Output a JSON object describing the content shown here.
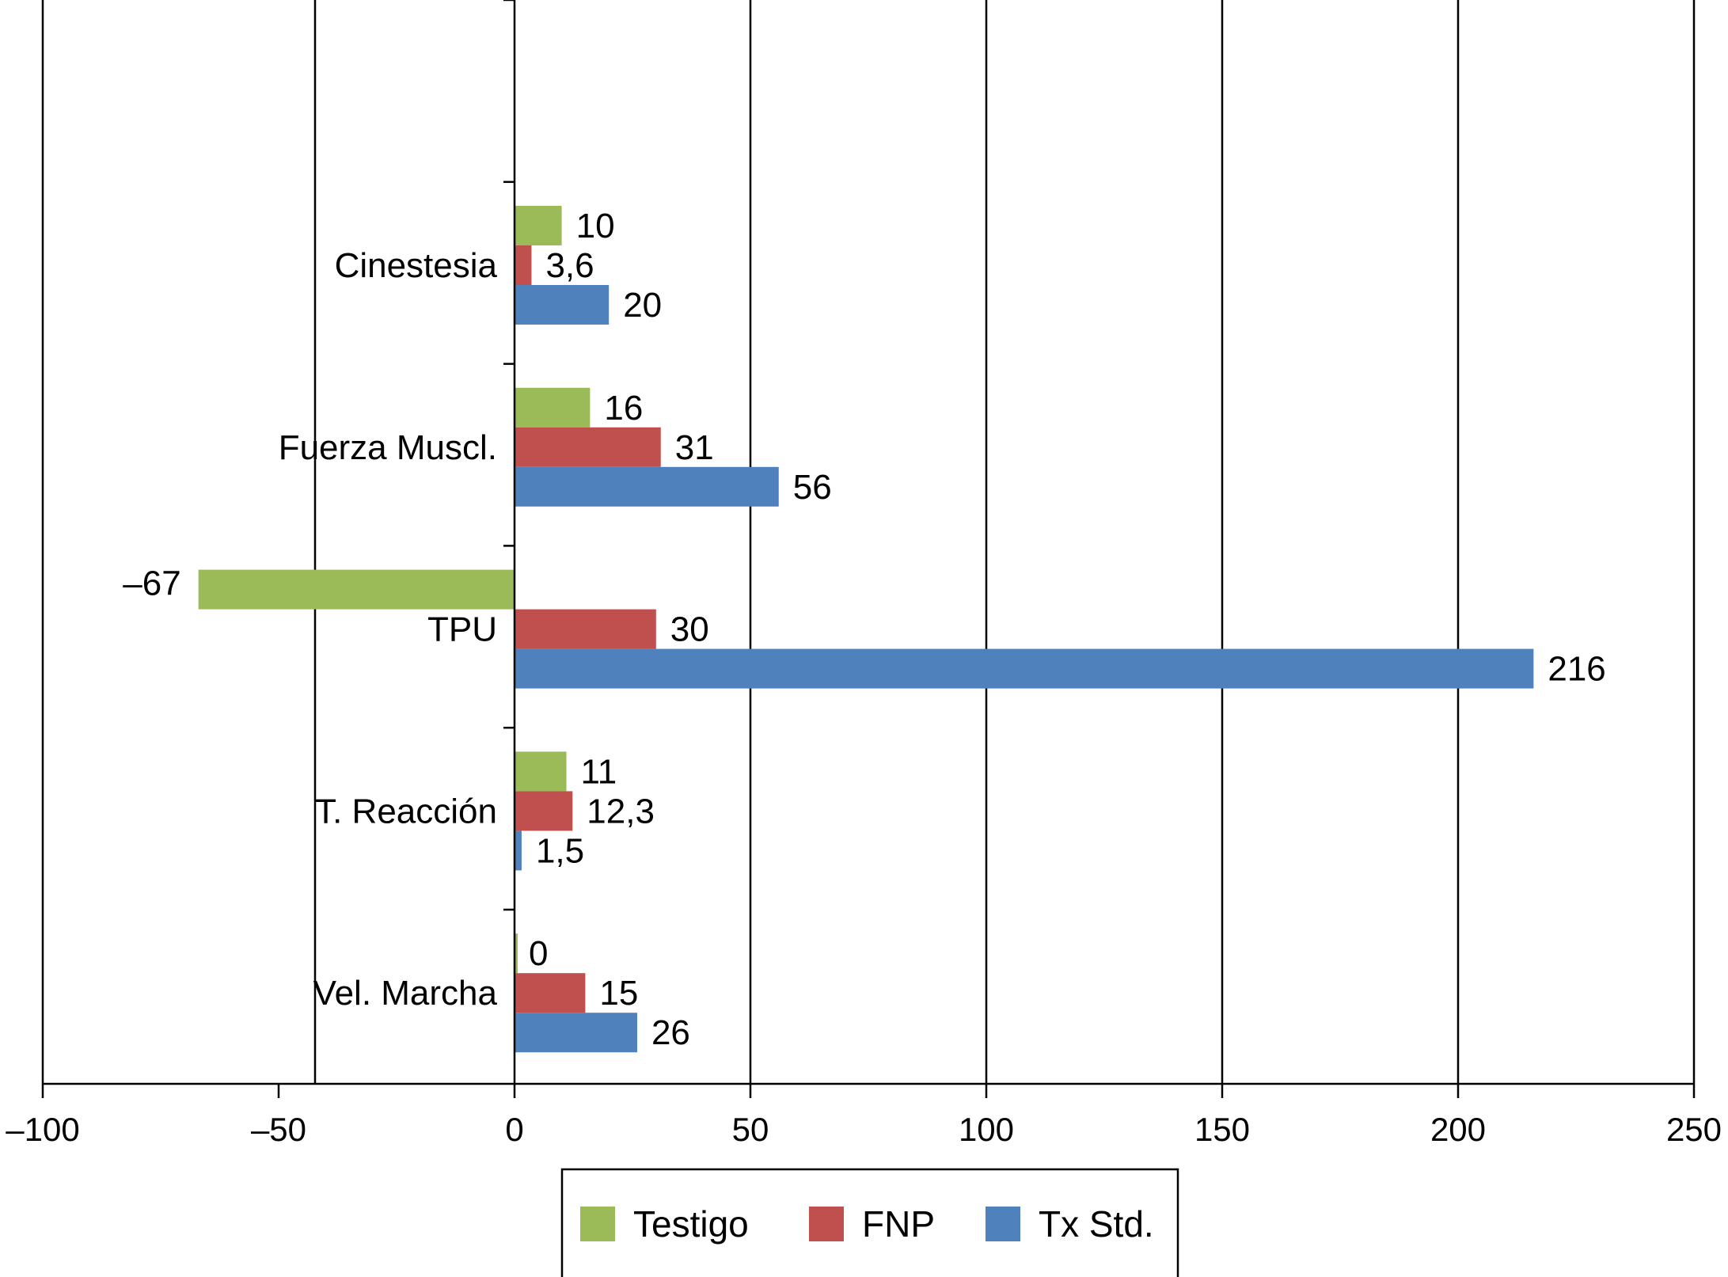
{
  "chart_data": {
    "type": "bar",
    "orientation": "horizontal",
    "categories": [
      "Cinestesia",
      "Fuerza Muscl.",
      "TPU",
      "T. Reacción",
      "Vel. Marcha"
    ],
    "series": [
      {
        "name": "Testigo",
        "color": "#9bbb59",
        "values": [
          10,
          16,
          -67,
          11,
          0
        ],
        "labels": [
          "10",
          "16",
          "–67",
          "11",
          "0"
        ]
      },
      {
        "name": "FNP",
        "color": "#c0504d",
        "values": [
          3.6,
          31,
          30,
          12.3,
          15
        ],
        "labels": [
          "3,6",
          "31",
          "30",
          "12,3",
          "15"
        ]
      },
      {
        "name": "Tx Std.",
        "color": "#4f81bd",
        "values": [
          20,
          56,
          216,
          1.5,
          26
        ],
        "labels": [
          "20",
          "56",
          "216",
          "1,5",
          "26"
        ]
      }
    ],
    "xlim": [
      -100,
      250
    ],
    "xticks": [
      -100,
      -50,
      0,
      50,
      100,
      150,
      200,
      250
    ],
    "xtick_labels": [
      "–100",
      "–50",
      "0",
      "50",
      "100",
      "150",
      "200",
      "250"
    ],
    "title": "",
    "xlabel": "",
    "ylabel": "",
    "grid": "vertical",
    "legend": "bottom-center"
  }
}
